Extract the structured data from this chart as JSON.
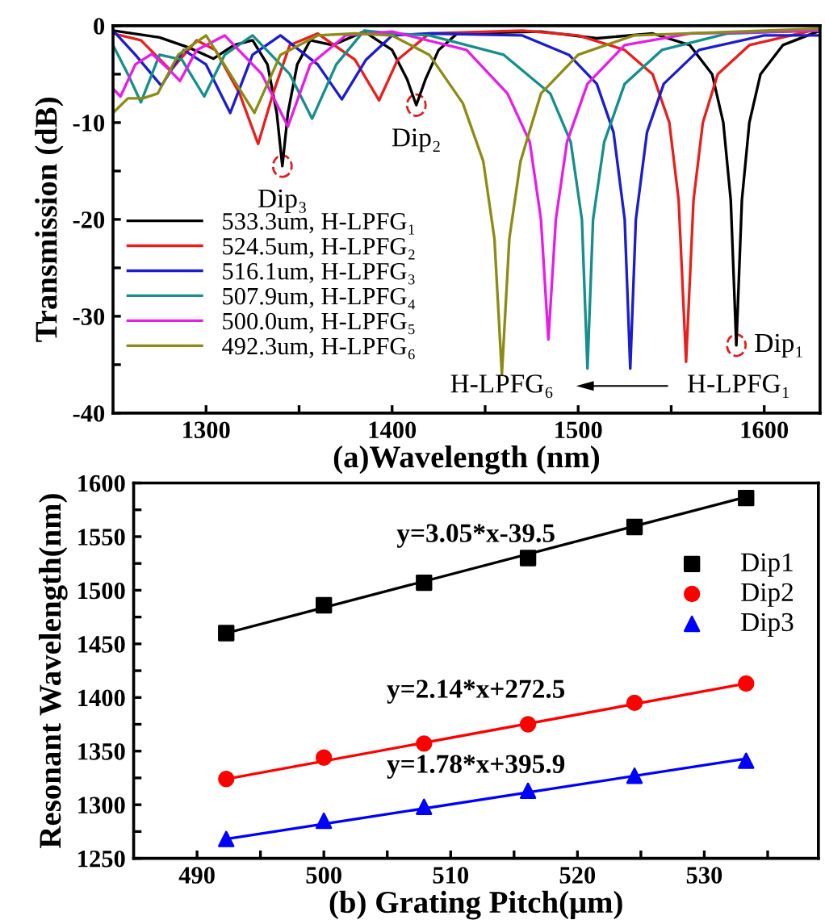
{
  "chart_data": [
    {
      "type": "line",
      "xlabel": "(a)Wavelength (nm)",
      "ylabel": "Transmission (dB)",
      "xlim": [
        1250,
        1630
      ],
      "ylim": [
        -40,
        0
      ],
      "xticks": [
        1300,
        {
          "value": 1350,
          "label": null
        },
        1400,
        {
          "value": 1450,
          "label": null
        },
        1500,
        {
          "value": 1550,
          "label": null
        },
        1600
      ],
      "yticks": [
        -40,
        {
          "value": -35,
          "label": null
        },
        -30,
        {
          "value": -25,
          "label": null
        },
        -20,
        {
          "value": -15,
          "label": null
        },
        -10,
        {
          "value": -5,
          "label": null
        },
        0
      ],
      "grid": false,
      "legend": "bottom left",
      "marker": "none",
      "line_style": "solid",
      "series": [
        {
          "name": "533.3um, H-LPFG₁",
          "color": "#000000",
          "x": [
            1250,
            1275,
            1290,
            1304,
            1315,
            1325,
            1333,
            1338,
            1341,
            1344,
            1349,
            1356,
            1368,
            1385,
            1400,
            1408,
            1413,
            1418,
            1425,
            1435,
            1480,
            1510,
            1540,
            1560,
            1572,
            1578,
            1582,
            1585,
            1588,
            1592,
            1598,
            1610,
            1630
          ],
          "values": [
            -0.5,
            -1.2,
            -2.2,
            -3.4,
            -2.0,
            -1.5,
            -4,
            -9,
            -14.5,
            -9,
            -4,
            -1.5,
            -2.0,
            -0.6,
            -2.5,
            -5.5,
            -8.2,
            -5.5,
            -2.5,
            -0.8,
            -0.6,
            -1.3,
            -0.8,
            -2,
            -5,
            -10,
            -18,
            -33,
            -18,
            -10,
            -5,
            -2,
            -0.5
          ]
        },
        {
          "name": "524.5um, H-LPFG₂",
          "color": "#e8201c",
          "x": [
            1250,
            1265,
            1281,
            1295,
            1305,
            1318,
            1328,
            1336,
            1345,
            1360,
            1380,
            1393,
            1403,
            1420,
            1470,
            1500,
            1525,
            1540,
            1549,
            1554,
            1558,
            1562,
            1567,
            1575,
            1592,
            1630
          ],
          "values": [
            -0.8,
            -1.5,
            -4.6,
            -1.5,
            -2.5,
            -7,
            -12.2,
            -7,
            -2,
            -0.8,
            -3.5,
            -7.7,
            -3.5,
            -0.8,
            -0.5,
            -1,
            -2.5,
            -5,
            -10,
            -18,
            -34.7,
            -18,
            -10,
            -5,
            -2,
            -0.3
          ]
        },
        {
          "name": "516.1um, H-LPFG₃",
          "color": "#1c1cd0",
          "x": [
            1250,
            1262,
            1276,
            1288,
            1300,
            1313,
            1325,
            1340,
            1360,
            1373,
            1386,
            1400,
            1420,
            1470,
            1495,
            1510,
            1519,
            1525,
            1528,
            1531,
            1537,
            1546,
            1565,
            1600,
            1630
          ],
          "values": [
            -0.5,
            -3,
            -6.2,
            -2.5,
            -4,
            -9,
            -3,
            -1,
            -4,
            -7.6,
            -3.5,
            -1,
            -0.8,
            -1,
            -3,
            -6,
            -11,
            -20,
            -35.4,
            -20,
            -11,
            -6,
            -2.5,
            -1,
            -1
          ]
        },
        {
          "name": "507.9um, H-LPFG₄",
          "color": "#148f8c",
          "x": [
            1250,
            1258,
            1265,
            1275,
            1287,
            1299,
            1310,
            1325,
            1345,
            1357,
            1370,
            1385,
            1400,
            1420,
            1460,
            1485,
            1496,
            1502,
            1505,
            1508,
            1514,
            1525,
            1545,
            1580,
            1630
          ],
          "values": [
            -2,
            -5,
            -7.9,
            -3,
            -3.5,
            -7.3,
            -3,
            -1,
            -5,
            -9.6,
            -4,
            -0.5,
            -0.8,
            -1,
            -3,
            -7,
            -12,
            -20,
            -35.4,
            -20,
            -12,
            -6,
            -2.5,
            -0.8,
            -0.5
          ]
        },
        {
          "name": "500.0um, H-LPFG₅",
          "color": "#e81ce8",
          "x": [
            1250,
            1254,
            1262,
            1271,
            1280,
            1286,
            1295,
            1310,
            1330,
            1344,
            1356,
            1375,
            1400,
            1440,
            1462,
            1474,
            1480,
            1484,
            1488,
            1494,
            1505,
            1525,
            1560,
            1630
          ],
          "values": [
            -6.5,
            -7.3,
            -4,
            -2.9,
            -4.5,
            -5.7,
            -2.5,
            -1,
            -5,
            -10.4,
            -4,
            -1,
            -0.6,
            -2.5,
            -7,
            -12,
            -20,
            -32.4,
            -20,
            -12,
            -6,
            -2,
            -0.8,
            -0.5
          ]
        },
        {
          "name": "492.3um, H-LPFG₆",
          "color": "#8c8c14",
          "x": [
            1250,
            1258,
            1266,
            1274,
            1285,
            1300,
            1313,
            1326,
            1340,
            1360,
            1380,
            1400,
            1420,
            1438,
            1449,
            1455,
            1459,
            1463,
            1469,
            1480,
            1500,
            1530,
            1630
          ],
          "values": [
            -9,
            -7.5,
            -7.5,
            -7,
            -3,
            -1,
            -5,
            -9,
            -3,
            -1,
            -0.8,
            -1,
            -3,
            -8,
            -14,
            -22,
            -36,
            -22,
            -14,
            -7,
            -3,
            -1,
            -0.3
          ]
        }
      ],
      "annotations": [
        {
          "text": "Dip₁",
          "x": 1585,
          "y": -33
        },
        {
          "text": "Dip₂",
          "x": 1413,
          "y": -8.2
        },
        {
          "text": "Dip₃",
          "x": 1341,
          "y": -14.5
        },
        "H-LPFG₆",
        "H-LPFG₁"
      ]
    },
    {
      "type": "scatter",
      "xlabel": "(b) Grating Pitch(μm)",
      "ylabel": "Resonant Wavelength(nm)",
      "xlim": [
        485,
        539
      ],
      "ylim": [
        1250,
        1600
      ],
      "xticks": [
        490,
        {
          "value": 495,
          "label": null
        },
        500,
        {
          "value": 505,
          "label": null
        },
        510,
        {
          "value": 515,
          "label": null
        },
        520,
        {
          "value": 525,
          "label": null
        },
        530,
        {
          "value": 535,
          "label": null
        }
      ],
      "yticks": [
        1250,
        {
          "value": 1275,
          "label": null
        },
        1300,
        {
          "value": 1325,
          "label": null
        },
        1350,
        {
          "value": 1375,
          "label": null
        },
        1400,
        {
          "value": 1425,
          "label": null
        },
        1450,
        {
          "value": 1475,
          "label": null
        },
        1500,
        {
          "value": 1525,
          "label": null
        },
        1550,
        {
          "value": 1575,
          "label": null
        },
        1600
      ],
      "grid": false,
      "legend": "top right",
      "x": [
        492.3,
        500.0,
        507.9,
        516.1,
        524.5,
        533.3
      ],
      "series": [
        {
          "name": "Dip1",
          "color": "#000000",
          "marker": "square",
          "values": [
            1460,
            1486,
            1507,
            1530,
            1559,
            1586
          ]
        },
        {
          "name": "Dip2",
          "color": "#ff0000",
          "marker": "circle",
          "values": [
            1324,
            1344,
            1357,
            1375,
            1395,
            1413
          ]
        },
        {
          "name": "Dip3",
          "color": "#0000ff",
          "marker": "triangle",
          "values": [
            1268,
            1285,
            1298,
            1313,
            1327,
            1341
          ]
        },
        {
          "type": "line",
          "color": "#000000",
          "marker": "none",
          "x": [
            492.3,
            533.3
          ],
          "values": [
            1460,
            1587
          ]
        },
        {
          "type": "line",
          "color": "#ff0000",
          "marker": "none",
          "x": [
            492.3,
            533.3
          ],
          "values": [
            1324,
            1413
          ]
        },
        {
          "type": "line",
          "color": "#0000ff",
          "marker": "none",
          "x": [
            492.3,
            533.3
          ],
          "values": [
            1268,
            1343
          ]
        }
      ],
      "annotations": [
        "y=3.05*x-39.5",
        "y=2.14*x+272.5",
        "y=1.78*x+395.9"
      ]
    }
  ]
}
